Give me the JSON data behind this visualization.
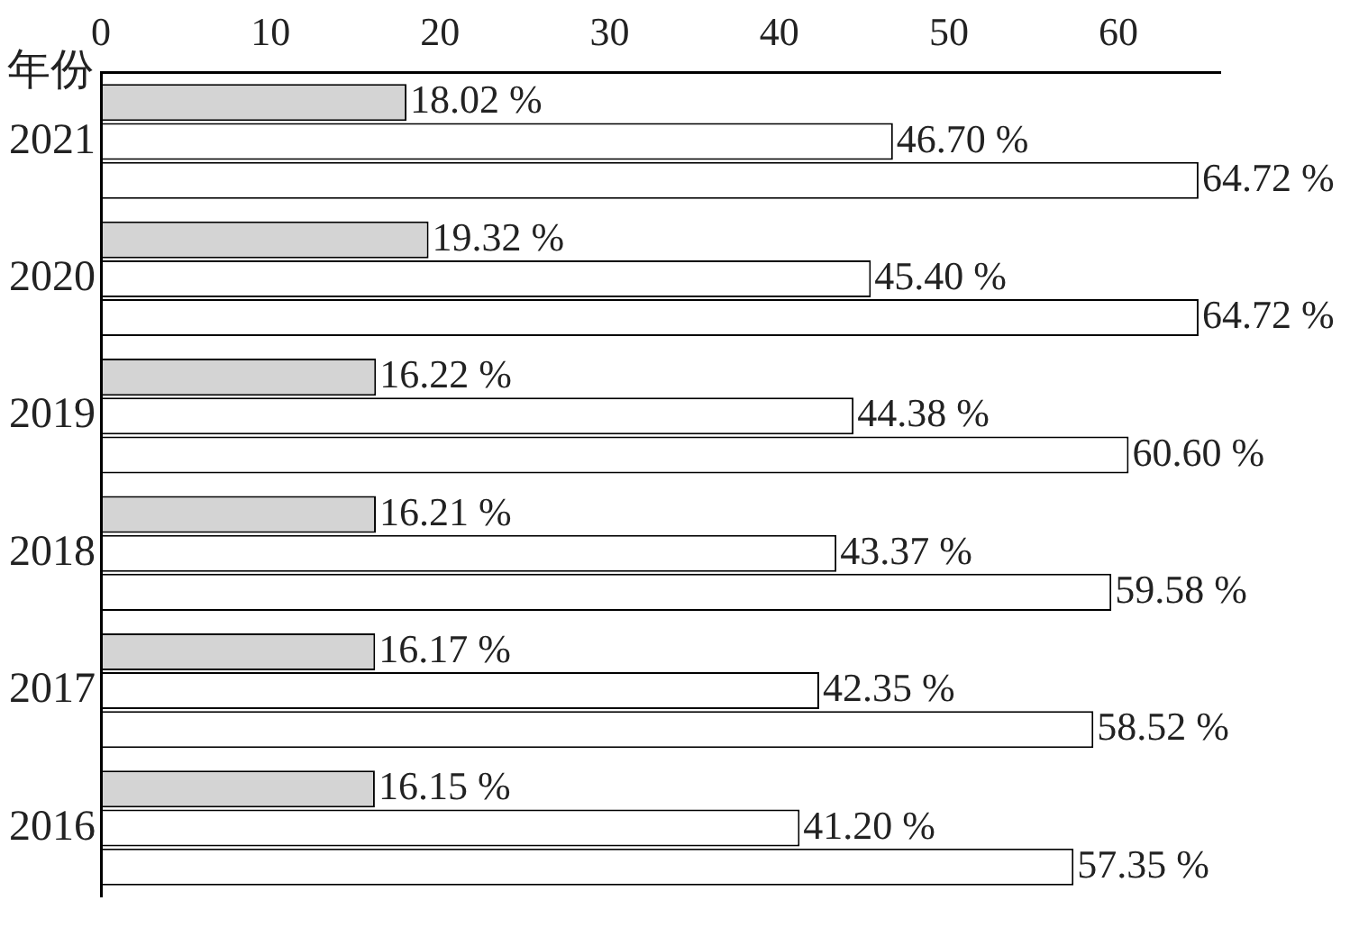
{
  "chart_data": {
    "type": "bar",
    "orientation": "horizontal",
    "ylabel": "年份",
    "categories": [
      "2021",
      "2020",
      "2019",
      "2018",
      "2017",
      "2016"
    ],
    "series": [
      {
        "color": "#d4d4d4",
        "values": [
          18.02,
          19.32,
          16.22,
          16.21,
          16.17,
          16.15
        ],
        "value_labels": [
          "18.02 %",
          "19.32 %",
          "16.22 %",
          "16.21 %",
          "16.17 %",
          "16.15 %"
        ]
      },
      {
        "color": "#ffffff",
        "values": [
          46.7,
          45.4,
          44.38,
          43.37,
          42.35,
          41.2
        ],
        "value_labels": [
          "46.70 %",
          "45.40 %",
          "44.38 %",
          "43.37 %",
          "42.35 %",
          "41.20 %"
        ]
      },
      {
        "color": "#ffffff",
        "values": [
          64.72,
          64.72,
          60.6,
          59.58,
          58.52,
          57.35
        ],
        "value_labels": [
          "64.72 %",
          "64.72 %",
          "60.60 %",
          "59.58 %",
          "58.52 %",
          "57.35 %"
        ]
      }
    ],
    "xlim": [
      0,
      66
    ],
    "xticks": [
      0,
      10,
      20,
      30,
      40,
      50,
      60
    ]
  }
}
